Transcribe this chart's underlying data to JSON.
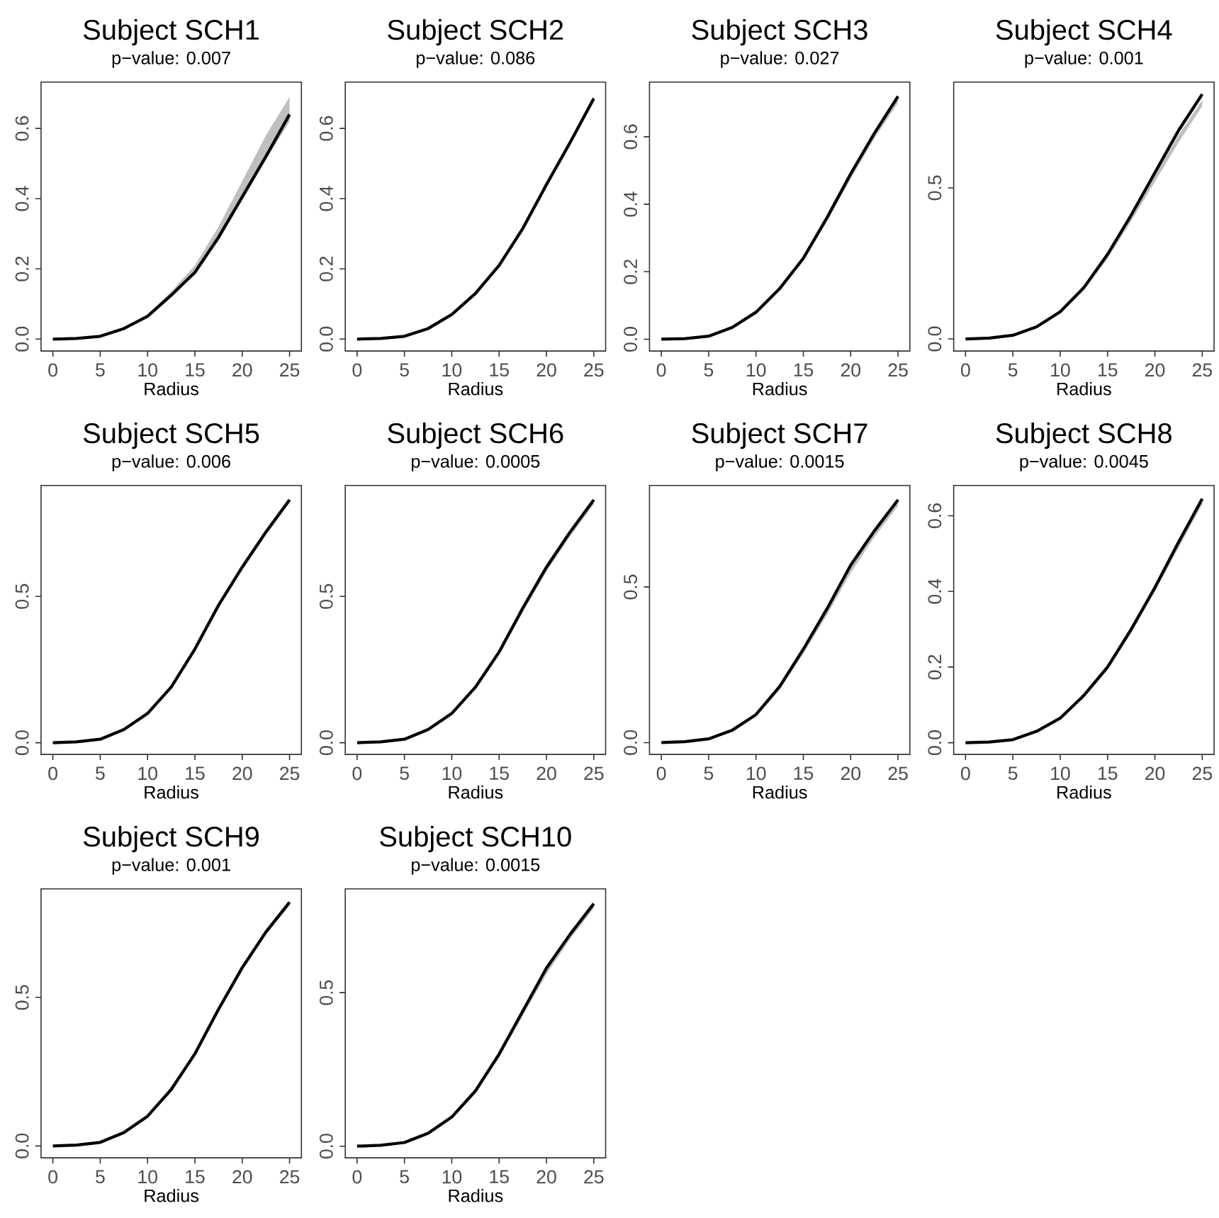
{
  "chart_data": [
    {
      "type": "line",
      "title": "Subject SCH1",
      "subtitle": "p−value: 0.007",
      "xlabel": "Radius",
      "x": [
        0,
        2.5,
        5,
        7.5,
        10,
        12.5,
        15,
        17.5,
        20,
        22.5,
        25
      ],
      "xlim": [
        -1.25,
        26.25
      ],
      "xticks": [
        0,
        5,
        10,
        15,
        20,
        25
      ],
      "ylim": [
        -0.034,
        0.732
      ],
      "yticks": [
        {
          "value": 0,
          "label": "0.0"
        },
        {
          "value": 0.2,
          "label": "0.2"
        },
        {
          "value": 0.4,
          "label": "0.4"
        },
        {
          "value": 0.6,
          "label": "0.6"
        }
      ],
      "series": [
        {
          "color": "#000000",
          "values": [
            0,
            0.002,
            0.008,
            0.03,
            0.065,
            0.125,
            0.19,
            0.29,
            0.405,
            0.52,
            0.64
          ],
          "lower": [
            0,
            0.001,
            0.007,
            0.028,
            0.063,
            0.12,
            0.185,
            0.28,
            0.395,
            0.51,
            0.62
          ],
          "upper": [
            0,
            0.003,
            0.01,
            0.032,
            0.07,
            0.135,
            0.21,
            0.32,
            0.45,
            0.58,
            0.69
          ]
        }
      ]
    },
    {
      "type": "line",
      "title": "Subject SCH2",
      "subtitle": "p−value: 0.086",
      "xlabel": "Radius",
      "x": [
        0,
        2.5,
        5,
        7.5,
        10,
        12.5,
        15,
        17.5,
        20,
        22.5,
        25
      ],
      "xlim": [
        -1.25,
        26.25
      ],
      "xticks": [
        0,
        5,
        10,
        15,
        20,
        25
      ],
      "ylim": [
        -0.034,
        0.732
      ],
      "yticks": [
        {
          "value": 0,
          "label": "0.0"
        },
        {
          "value": 0.2,
          "label": "0.2"
        },
        {
          "value": 0.4,
          "label": "0.4"
        },
        {
          "value": 0.6,
          "label": "0.6"
        }
      ],
      "series": [
        {
          "color": "#000000",
          "values": [
            0,
            0.002,
            0.008,
            0.03,
            0.07,
            0.13,
            0.21,
            0.315,
            0.44,
            0.56,
            0.685
          ],
          "lower": [
            0,
            0.001,
            0.007,
            0.028,
            0.067,
            0.126,
            0.205,
            0.308,
            0.432,
            0.552,
            0.677
          ],
          "upper": [
            0,
            0.003,
            0.009,
            0.032,
            0.073,
            0.134,
            0.215,
            0.322,
            0.448,
            0.568,
            0.693
          ]
        }
      ]
    },
    {
      "type": "line",
      "title": "Subject SCH3",
      "subtitle": "p−value: 0.027",
      "xlabel": "Radius",
      "x": [
        0,
        2.5,
        5,
        7.5,
        10,
        12.5,
        15,
        17.5,
        20,
        22.5,
        25
      ],
      "xlim": [
        -1.25,
        26.25
      ],
      "xticks": [
        0,
        5,
        10,
        15,
        20,
        25
      ],
      "ylim": [
        -0.035,
        0.762
      ],
      "yticks": [
        {
          "value": 0,
          "label": "0.0"
        },
        {
          "value": 0.2,
          "label": "0.2"
        },
        {
          "value": 0.4,
          "label": "0.4"
        },
        {
          "value": 0.6,
          "label": "0.6"
        }
      ],
      "series": [
        {
          "color": "#000000",
          "values": [
            0,
            0.002,
            0.009,
            0.035,
            0.08,
            0.15,
            0.24,
            0.36,
            0.49,
            0.61,
            0.72
          ],
          "lower": [
            0,
            0.001,
            0.008,
            0.032,
            0.076,
            0.144,
            0.232,
            0.35,
            0.475,
            0.595,
            0.7
          ],
          "upper": [
            0,
            0.003,
            0.01,
            0.037,
            0.083,
            0.154,
            0.245,
            0.365,
            0.493,
            0.613,
            0.723
          ]
        }
      ]
    },
    {
      "type": "line",
      "title": "Subject SCH4",
      "subtitle": "p−value: 0.001",
      "xlabel": "Radius",
      "x": [
        0,
        2.5,
        5,
        7.5,
        10,
        12.5,
        15,
        17.5,
        20,
        22.5,
        25
      ],
      "xlim": [
        -1.25,
        26.25
      ],
      "xticks": [
        0,
        5,
        10,
        15,
        20,
        25
      ],
      "ylim": [
        -0.04,
        0.85
      ],
      "yticks": [
        {
          "value": 0,
          "label": "0.0"
        },
        {
          "value": 0.5,
          "label": "0.5"
        }
      ],
      "series": [
        {
          "color": "#000000",
          "values": [
            0,
            0.003,
            0.012,
            0.04,
            0.09,
            0.17,
            0.28,
            0.41,
            0.55,
            0.69,
            0.81
          ],
          "lower": [
            0,
            0.002,
            0.01,
            0.037,
            0.085,
            0.16,
            0.265,
            0.39,
            0.52,
            0.65,
            0.77
          ],
          "upper": [
            0,
            0.003,
            0.012,
            0.04,
            0.089,
            0.168,
            0.277,
            0.405,
            0.54,
            0.675,
            0.79
          ]
        }
      ]
    },
    {
      "type": "line",
      "title": "Subject SCH5",
      "subtitle": "p−value: 0.006",
      "xlabel": "Radius",
      "x": [
        0,
        2.5,
        5,
        7.5,
        10,
        12.5,
        15,
        17.5,
        20,
        22.5,
        25
      ],
      "xlim": [
        -1.25,
        26.25
      ],
      "xticks": [
        0,
        5,
        10,
        15,
        20,
        25
      ],
      "ylim": [
        -0.04,
        0.879
      ],
      "yticks": [
        {
          "value": 0,
          "label": "0.0"
        },
        {
          "value": 0.5,
          "label": "0.5"
        }
      ],
      "series": [
        {
          "color": "#000000",
          "values": [
            0,
            0.003,
            0.012,
            0.045,
            0.1,
            0.19,
            0.32,
            0.47,
            0.6,
            0.72,
            0.83
          ],
          "lower": [
            0,
            0.002,
            0.011,
            0.043,
            0.097,
            0.185,
            0.313,
            0.46,
            0.59,
            0.71,
            0.82
          ],
          "upper": [
            0,
            0.003,
            0.012,
            0.045,
            0.1,
            0.19,
            0.32,
            0.47,
            0.6,
            0.72,
            0.83
          ]
        }
      ]
    },
    {
      "type": "line",
      "title": "Subject SCH6",
      "subtitle": "p−value: 0.0005",
      "xlabel": "Radius",
      "x": [
        0,
        2.5,
        5,
        7.5,
        10,
        12.5,
        15,
        17.5,
        20,
        22.5,
        25
      ],
      "xlim": [
        -1.25,
        26.25
      ],
      "xticks": [
        0,
        5,
        10,
        15,
        20,
        25
      ],
      "ylim": [
        -0.04,
        0.879
      ],
      "yticks": [
        {
          "value": 0,
          "label": "0.0"
        },
        {
          "value": 0.5,
          "label": "0.5"
        }
      ],
      "series": [
        {
          "color": "#000000",
          "values": [
            0,
            0.003,
            0.012,
            0.045,
            0.1,
            0.19,
            0.31,
            0.46,
            0.6,
            0.72,
            0.83
          ],
          "lower": [
            0,
            0.002,
            0.011,
            0.042,
            0.095,
            0.182,
            0.3,
            0.445,
            0.585,
            0.705,
            0.815
          ],
          "upper": [
            0,
            0.003,
            0.012,
            0.045,
            0.1,
            0.19,
            0.31,
            0.46,
            0.6,
            0.72,
            0.83
          ]
        }
      ]
    },
    {
      "type": "line",
      "title": "Subject SCH7",
      "subtitle": "p−value: 0.0015",
      "xlabel": "Radius",
      "x": [
        0,
        2.5,
        5,
        7.5,
        10,
        12.5,
        15,
        17.5,
        20,
        22.5,
        25
      ],
      "xlim": [
        -1.25,
        26.25
      ],
      "xticks": [
        0,
        5,
        10,
        15,
        20,
        25
      ],
      "ylim": [
        -0.038,
        0.826
      ],
      "yticks": [
        {
          "value": 0,
          "label": "0.0"
        },
        {
          "value": 0.5,
          "label": "0.5"
        }
      ],
      "series": [
        {
          "color": "#000000",
          "values": [
            0,
            0.003,
            0.012,
            0.04,
            0.09,
            0.18,
            0.3,
            0.43,
            0.57,
            0.68,
            0.78
          ],
          "lower": [
            0,
            0.002,
            0.01,
            0.037,
            0.085,
            0.17,
            0.285,
            0.41,
            0.545,
            0.66,
            0.76
          ],
          "upper": [
            0,
            0.003,
            0.012,
            0.04,
            0.09,
            0.178,
            0.297,
            0.425,
            0.562,
            0.675,
            0.775
          ]
        }
      ]
    },
    {
      "type": "line",
      "title": "Subject SCH8",
      "subtitle": "p−value: 0.0045",
      "xlabel": "Radius",
      "x": [
        0,
        2.5,
        5,
        7.5,
        10,
        12.5,
        15,
        17.5,
        20,
        22.5,
        25
      ],
      "xlim": [
        -1.25,
        26.25
      ],
      "xticks": [
        0,
        5,
        10,
        15,
        20,
        25
      ],
      "ylim": [
        -0.031,
        0.68
      ],
      "yticks": [
        {
          "value": 0,
          "label": "0.0"
        },
        {
          "value": 0.2,
          "label": "0.2"
        },
        {
          "value": 0.4,
          "label": "0.4"
        },
        {
          "value": 0.6,
          "label": "0.6"
        }
      ],
      "series": [
        {
          "color": "#000000",
          "values": [
            0,
            0.002,
            0.008,
            0.03,
            0.065,
            0.125,
            0.2,
            0.3,
            0.41,
            0.53,
            0.645
          ],
          "lower": [
            0,
            0.001,
            0.007,
            0.028,
            0.062,
            0.12,
            0.192,
            0.29,
            0.4,
            0.515,
            0.63
          ],
          "upper": [
            0,
            0.002,
            0.008,
            0.03,
            0.065,
            0.125,
            0.2,
            0.3,
            0.41,
            0.53,
            0.645
          ]
        }
      ]
    },
    {
      "type": "line",
      "title": "Subject SCH9",
      "subtitle": "p−value: 0.001",
      "xlabel": "Radius",
      "x": [
        0,
        2.5,
        5,
        7.5,
        10,
        12.5,
        15,
        17.5,
        20,
        22.5,
        25
      ],
      "xlim": [
        -1.25,
        26.25
      ],
      "xticks": [
        0,
        5,
        10,
        15,
        20,
        25
      ],
      "ylim": [
        -0.04,
        0.865
      ],
      "yticks": [
        {
          "value": 0,
          "label": "0.0"
        },
        {
          "value": 0.5,
          "label": "0.5"
        }
      ],
      "series": [
        {
          "color": "#000000",
          "values": [
            0,
            0.003,
            0.012,
            0.045,
            0.1,
            0.19,
            0.31,
            0.46,
            0.6,
            0.72,
            0.82
          ],
          "lower": [
            0,
            0.002,
            0.011,
            0.043,
            0.097,
            0.185,
            0.303,
            0.45,
            0.59,
            0.71,
            0.81
          ],
          "upper": [
            0,
            0.003,
            0.012,
            0.045,
            0.1,
            0.19,
            0.31,
            0.46,
            0.6,
            0.72,
            0.82
          ]
        }
      ]
    },
    {
      "type": "line",
      "title": "Subject SCH10",
      "subtitle": "p−value: 0.0015",
      "xlabel": "Radius",
      "x": [
        0,
        2.5,
        5,
        7.5,
        10,
        12.5,
        15,
        17.5,
        20,
        22.5,
        25
      ],
      "xlim": [
        -1.25,
        26.25
      ],
      "xticks": [
        0,
        5,
        10,
        15,
        20,
        25
      ],
      "ylim": [
        -0.038,
        0.838
      ],
      "yticks": [
        {
          "value": 0,
          "label": "0.0"
        },
        {
          "value": 0.5,
          "label": "0.5"
        }
      ],
      "series": [
        {
          "color": "#000000",
          "values": [
            0,
            0.003,
            0.012,
            0.042,
            0.095,
            0.18,
            0.3,
            0.44,
            0.58,
            0.69,
            0.79
          ],
          "lower": [
            0,
            0.002,
            0.01,
            0.039,
            0.09,
            0.172,
            0.288,
            0.425,
            0.56,
            0.675,
            0.775
          ],
          "upper": [
            0,
            0.003,
            0.012,
            0.042,
            0.095,
            0.18,
            0.3,
            0.44,
            0.58,
            0.69,
            0.79
          ]
        }
      ]
    }
  ]
}
